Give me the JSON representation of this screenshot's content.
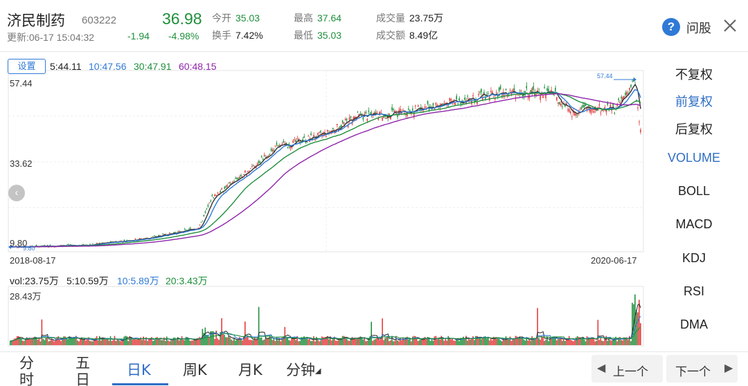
{
  "header": {
    "stock_name": "济民制药",
    "stock_code": "603222",
    "update_time": "更新:06-17 15:04:32",
    "price": "36.98",
    "change": "-1.94",
    "change_pct": "-4.98%",
    "stats": {
      "open_label": "今开",
      "open_value": "35.03",
      "turnover_label": "换手",
      "turnover_value": "7.42%",
      "high_label": "最高",
      "high_value": "37.64",
      "low_label": "最低",
      "low_value": "35.03",
      "volume_label": "成交量",
      "volume_value": "23.75万",
      "amount_label": "成交额",
      "amount_value": "8.49亿"
    },
    "help_icon": "?",
    "help_label": "问股",
    "close_icon": "close-icon"
  },
  "chart": {
    "settings_label": "设置",
    "ma": [
      {
        "label": "5:44.11",
        "color": "#333333"
      },
      {
        "label": "10:47.56",
        "color": "#2f7ad6"
      },
      {
        "label": "30:47.91",
        "color": "#1f8f3c"
      },
      {
        "label": "60:48.15",
        "color": "#8e24aa"
      }
    ],
    "y_axis": {
      "top": "57.44",
      "mid": "33.62",
      "bottom": "9.80"
    },
    "start_date": "2018-08-17",
    "end_date": "2020-06-17",
    "max_marker": "57.44",
    "min_marker": "9.80",
    "nav_left_icon": "‹"
  },
  "volume": {
    "vol": {
      "label": "vol:23.75万",
      "color": "#333333"
    },
    "ma5": {
      "label": "5:10.59万",
      "color": "#333333"
    },
    "ma10": {
      "label": "10:5.89万",
      "color": "#2f7ad6"
    },
    "ma20": {
      "label": "20:3.43万",
      "color": "#1f8f3c"
    },
    "max": "28.43万"
  },
  "side_menu": [
    {
      "label": "不复权",
      "active": false
    },
    {
      "label": "前复权",
      "active": true
    },
    {
      "label": "后复权",
      "active": false
    },
    {
      "label": "VOLUME",
      "active": true
    },
    {
      "label": "BOLL",
      "active": false
    },
    {
      "label": "MACD",
      "active": false
    },
    {
      "label": "KDJ",
      "active": false
    },
    {
      "label": "RSI",
      "active": false
    },
    {
      "label": "DMA",
      "active": false
    }
  ],
  "tabs": [
    {
      "label": "分时"
    },
    {
      "label": "五日"
    },
    {
      "label": "日K"
    },
    {
      "label": "周K"
    },
    {
      "label": "月K"
    },
    {
      "label": "分钟"
    }
  ],
  "pager": {
    "prev_label": "上一个",
    "next_label": "下一个"
  },
  "colors": {
    "up": "#e23b3b",
    "down": "#1f8f3c",
    "accent": "#2f6ec4",
    "ma5": "#333333",
    "ma10": "#2f7ad6",
    "ma30": "#1f8f3c",
    "ma60": "#8e24aa"
  }
}
